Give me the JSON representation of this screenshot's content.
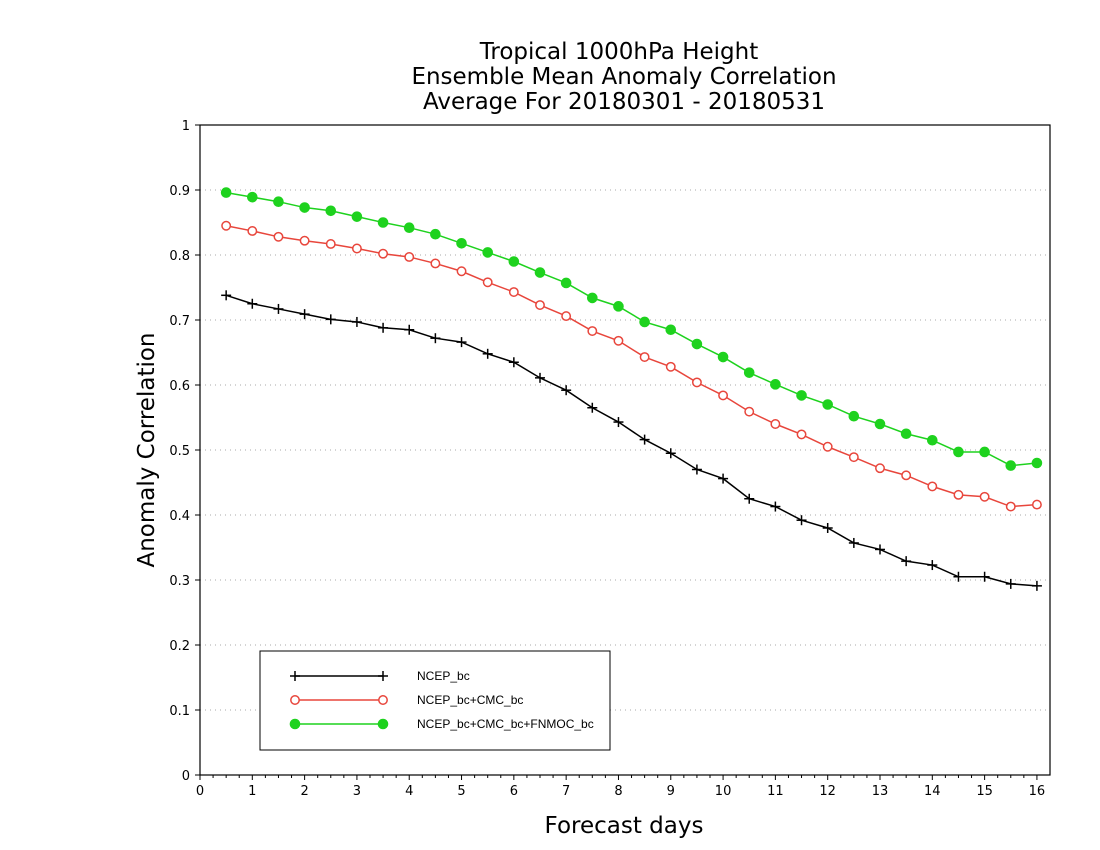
{
  "chart_data": {
    "type": "line",
    "title_lines": [
      "Tropical 1000hPa Height",
      "Ensemble Mean Anomaly Correlation",
      "Average For 20180301 - 20180531"
    ],
    "xlabel": "Forecast days",
    "ylabel": "Anomaly Correlation",
    "xlim": [
      0,
      16.25
    ],
    "ylim": [
      0,
      1
    ],
    "x_ticks": [
      0,
      1,
      2,
      3,
      4,
      5,
      6,
      7,
      8,
      9,
      10,
      11,
      12,
      13,
      14,
      15,
      16
    ],
    "y_ticks": [
      0,
      0.1,
      0.2,
      0.3,
      0.4,
      0.5,
      0.6,
      0.7,
      0.8,
      0.9,
      1
    ],
    "y_tick_labels": [
      "0",
      "0.1",
      "0.2",
      "0.3",
      "0.4",
      "0.5",
      "0.6",
      "0.7",
      "0.8",
      "0.9",
      "1"
    ],
    "grid": "horizontal dotted",
    "legend_position": "bottom-left",
    "x": [
      0.5,
      1,
      1.5,
      2,
      2.5,
      3,
      3.5,
      4,
      4.5,
      5,
      5.5,
      6,
      6.5,
      7,
      7.5,
      8,
      8.5,
      9,
      9.5,
      10,
      10.5,
      11,
      11.5,
      12,
      12.5,
      13,
      13.5,
      14,
      14.5,
      15,
      15.5,
      16
    ],
    "series": [
      {
        "name": "NCEP_bc",
        "color": "#000000",
        "marker": "plus",
        "values": [
          0.738,
          0.725,
          0.717,
          0.709,
          0.701,
          0.697,
          0.688,
          0.685,
          0.672,
          0.666,
          0.648,
          0.635,
          0.611,
          0.592,
          0.565,
          0.543,
          0.516,
          0.495,
          0.47,
          0.456,
          0.425,
          0.413,
          0.392,
          0.38,
          0.357,
          0.347,
          0.329,
          0.323,
          0.305,
          0.305,
          0.294,
          0.291
        ]
      },
      {
        "name": "NCEP_bc+CMC_bc",
        "color": "#e8463c",
        "marker": "open-circle",
        "values": [
          0.845,
          0.837,
          0.828,
          0.822,
          0.817,
          0.81,
          0.802,
          0.797,
          0.787,
          0.775,
          0.758,
          0.743,
          0.723,
          0.706,
          0.683,
          0.668,
          0.643,
          0.628,
          0.604,
          0.584,
          0.559,
          0.54,
          0.524,
          0.505,
          0.489,
          0.472,
          0.461,
          0.444,
          0.431,
          0.428,
          0.413,
          0.416
        ]
      },
      {
        "name": "NCEP_bc+CMC_bc+FNMOC_bc",
        "color": "#1ed21e",
        "marker": "filled-circle",
        "values": [
          0.896,
          0.889,
          0.882,
          0.873,
          0.868,
          0.859,
          0.85,
          0.842,
          0.832,
          0.818,
          0.804,
          0.79,
          0.773,
          0.757,
          0.734,
          0.721,
          0.697,
          0.685,
          0.663,
          0.643,
          0.619,
          0.601,
          0.584,
          0.57,
          0.552,
          0.54,
          0.525,
          0.515,
          0.497,
          0.497,
          0.476,
          0.48
        ]
      }
    ]
  }
}
